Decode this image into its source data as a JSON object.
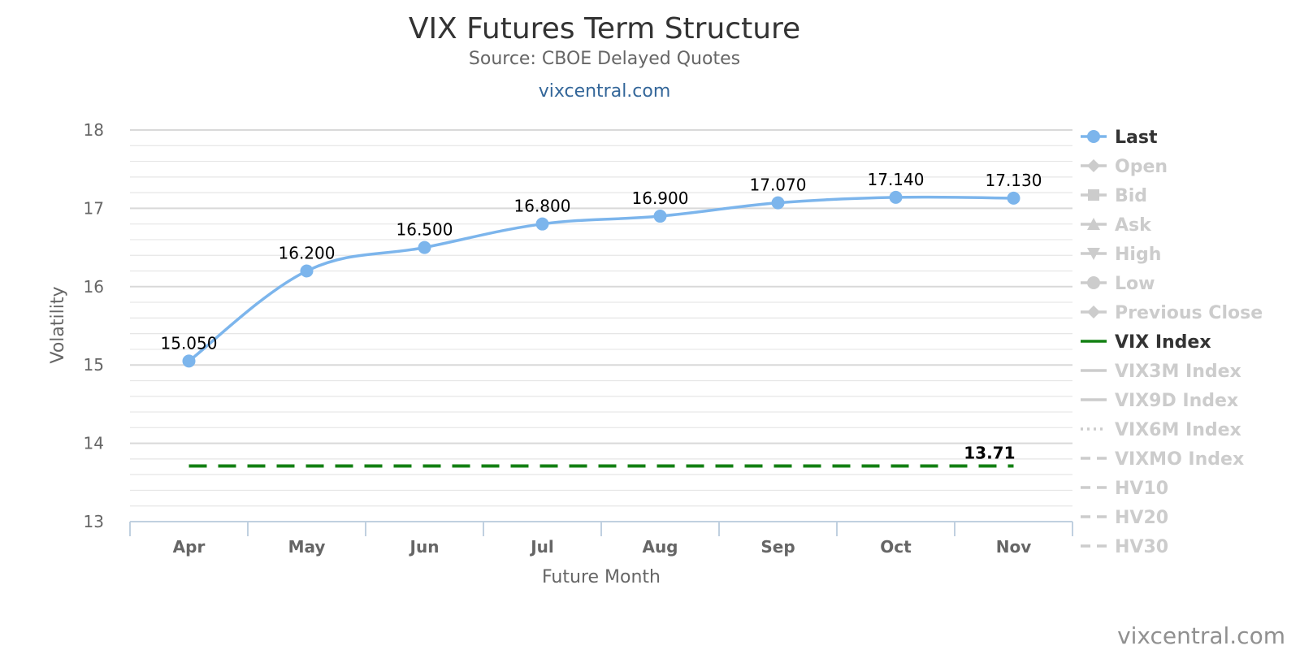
{
  "chart_data": {
    "type": "line",
    "title": "VIX Futures Term Structure",
    "subtitle": "Source: CBOE Delayed Quotes",
    "site_link": "vixcentral.com",
    "xlabel": "Future Month",
    "ylabel": "Volatility",
    "ylim": [
      13,
      18
    ],
    "y_ticks": [
      "13",
      "14",
      "15",
      "16",
      "17",
      "18"
    ],
    "categories": [
      "Apr",
      "May",
      "Jun",
      "Jul",
      "Aug",
      "Sep",
      "Oct",
      "Nov"
    ],
    "grid": true,
    "legend_position": "right",
    "series": [
      {
        "name": "Last",
        "values": [
          15.05,
          16.2,
          16.5,
          16.8,
          16.9,
          17.07,
          17.14,
          17.13
        ],
        "labels": [
          "15.050",
          "16.200",
          "16.500",
          "16.800",
          "16.900",
          "17.070",
          "17.140",
          "17.130"
        ],
        "color": "#7cb5ec"
      },
      {
        "name": "VIX Index",
        "value": 13.71,
        "label": "13.71",
        "color": "#138013",
        "dash": "dashed"
      }
    ],
    "legend": [
      {
        "name": "Last",
        "active": true,
        "symbol": "circle-line",
        "color": "#7cb5ec"
      },
      {
        "name": "Open",
        "active": false,
        "symbol": "diamond-line"
      },
      {
        "name": "Bid",
        "active": false,
        "symbol": "square-line"
      },
      {
        "name": "Ask",
        "active": false,
        "symbol": "triangle-line"
      },
      {
        "name": "High",
        "active": false,
        "symbol": "triangle-down-line"
      },
      {
        "name": "Low",
        "active": false,
        "symbol": "circle-line"
      },
      {
        "name": "Previous Close",
        "active": false,
        "symbol": "diamond-line"
      },
      {
        "name": "VIX Index",
        "active": true,
        "symbol": "solid-line",
        "color": "#138013"
      },
      {
        "name": "VIX3M Index",
        "active": false,
        "symbol": "solid-line"
      },
      {
        "name": "VIX9D Index",
        "active": false,
        "symbol": "solid-line"
      },
      {
        "name": "VIX6M Index",
        "active": false,
        "symbol": "dotted-line"
      },
      {
        "name": "VIXMO Index",
        "active": false,
        "symbol": "dashed-line"
      },
      {
        "name": "HV10",
        "active": false,
        "symbol": "dashed-line"
      },
      {
        "name": "HV20",
        "active": false,
        "symbol": "dashed-line"
      },
      {
        "name": "HV30",
        "active": false,
        "symbol": "dashed-line"
      }
    ],
    "legend_inactive_color": "#cccccc",
    "watermark": "vixcentral.com"
  }
}
